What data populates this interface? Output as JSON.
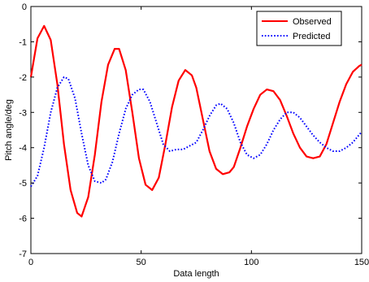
{
  "chart_data": {
    "type": "line",
    "title": "",
    "xlabel": "Data length",
    "ylabel": "Pitch angle/deg",
    "xlim": [
      0,
      150
    ],
    "ylim": [
      -7,
      0
    ],
    "xticks": [
      0,
      50,
      100,
      150
    ],
    "yticks": [
      0,
      -1,
      -2,
      -3,
      -4,
      -5,
      -6,
      -7
    ],
    "grid": false,
    "legend_position": "top-right",
    "series": [
      {
        "name": "Observed",
        "color": "#ff0000",
        "style": "solid",
        "x": [
          0,
          3,
          6,
          9,
          12,
          15,
          18,
          21,
          23,
          26,
          29,
          32,
          35,
          38,
          40,
          43,
          46,
          49,
          52,
          55,
          58,
          61,
          64,
          67,
          70,
          73,
          75,
          78,
          81,
          84,
          87,
          90,
          92,
          95,
          98,
          101,
          104,
          107,
          110,
          113,
          116,
          119,
          122,
          125,
          128,
          131,
          134,
          137,
          140,
          143,
          146,
          149,
          150
        ],
        "y": [
          -2.0,
          -0.9,
          -0.55,
          -0.95,
          -2.2,
          -3.9,
          -5.2,
          -5.85,
          -5.95,
          -5.4,
          -4.2,
          -2.7,
          -1.65,
          -1.2,
          -1.2,
          -1.8,
          -3.0,
          -4.3,
          -5.05,
          -5.2,
          -4.85,
          -3.9,
          -2.85,
          -2.1,
          -1.8,
          -1.95,
          -2.3,
          -3.2,
          -4.1,
          -4.6,
          -4.75,
          -4.7,
          -4.55,
          -4.0,
          -3.4,
          -2.9,
          -2.5,
          -2.35,
          -2.4,
          -2.65,
          -3.1,
          -3.6,
          -4.0,
          -4.25,
          -4.3,
          -4.25,
          -3.9,
          -3.3,
          -2.7,
          -2.2,
          -1.85,
          -1.68,
          -1.65
        ]
      },
      {
        "name": "Predicted",
        "color": "#0000ff",
        "style": "dotted",
        "x": [
          0,
          3,
          6,
          9,
          12,
          15,
          17,
          20,
          23,
          26,
          29,
          32,
          34,
          37,
          40,
          43,
          46,
          49,
          51,
          54,
          57,
          60,
          63,
          66,
          69,
          72,
          75,
          78,
          81,
          84,
          86,
          89,
          92,
          95,
          98,
          101,
          104,
          107,
          110,
          113,
          116,
          119,
          122,
          125,
          128,
          131,
          134,
          137,
          140,
          143,
          146,
          150
        ],
        "y": [
          -5.1,
          -4.8,
          -4.0,
          -3.0,
          -2.3,
          -2.0,
          -2.05,
          -2.6,
          -3.6,
          -4.5,
          -4.95,
          -5.0,
          -4.9,
          -4.4,
          -3.6,
          -2.9,
          -2.5,
          -2.35,
          -2.35,
          -2.7,
          -3.3,
          -3.9,
          -4.1,
          -4.05,
          -4.05,
          -3.95,
          -3.85,
          -3.5,
          -3.1,
          -2.8,
          -2.75,
          -2.9,
          -3.3,
          -3.85,
          -4.2,
          -4.3,
          -4.2,
          -3.9,
          -3.5,
          -3.2,
          -3.0,
          -3.0,
          -3.15,
          -3.4,
          -3.65,
          -3.85,
          -4.0,
          -4.1,
          -4.1,
          -4.0,
          -3.85,
          -3.55
        ]
      }
    ]
  }
}
